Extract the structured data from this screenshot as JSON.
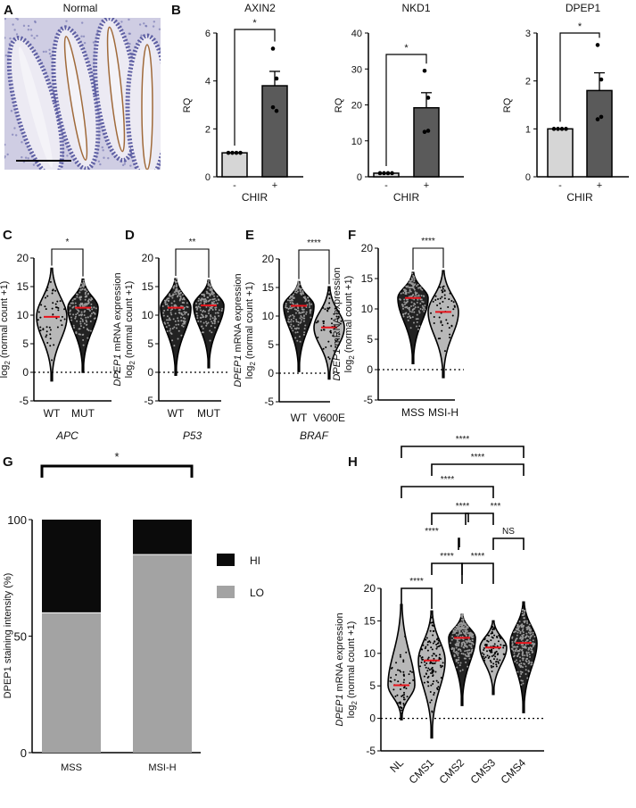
{
  "panels": {
    "A": "A",
    "B": "B",
    "C": "C",
    "D": "D",
    "E": "E",
    "F": "F",
    "G": "G",
    "H": "H"
  },
  "image_panel": {
    "title": "Normal"
  },
  "colors": {
    "bar_ctrl": "#d6d6d6",
    "bar_treat": "#5a5a5a",
    "violin": "#b8b8b8",
    "median": "#e8141c",
    "hi": "#0b0b0b",
    "lo": "#a3a3a3"
  },
  "violin_ylabel": {
    "gene": "DPEP1",
    "rest": " mRNA expression",
    "log": "log",
    "sub": "2",
    "unit": " (normal count +1)"
  },
  "chart_data": [
    {
      "panel": "B",
      "type": "bar",
      "title": "AXIN2",
      "categories": [
        "-",
        "+"
      ],
      "values": [
        1,
        3.8
      ],
      "sem": [
        0,
        0.6
      ],
      "points": [
        [
          1,
          1,
          1,
          1
        ],
        [
          5.35,
          4.1,
          2.9,
          2.75
        ]
      ],
      "xlabel": "CHIR",
      "ylabel": "RQ",
      "ylim": [
        0,
        6
      ],
      "yticks": [
        "0",
        "2",
        "4",
        "6"
      ],
      "significance": "*"
    },
    {
      "panel": "B",
      "type": "bar",
      "title": "NKD1",
      "categories": [
        "-",
        "+"
      ],
      "values": [
        1,
        19.2
      ],
      "sem": [
        0,
        4.2
      ],
      "points": [
        [
          1,
          1,
          1,
          1
        ],
        [
          29.5,
          22,
          12.5,
          12.8
        ]
      ],
      "xlabel": "CHIR",
      "ylabel": "RQ",
      "ylim": [
        0,
        40
      ],
      "yticks": [
        "0",
        "10",
        "20",
        "30",
        "40"
      ],
      "significance": "*"
    },
    {
      "panel": "B",
      "type": "bar",
      "title": "DPEP1",
      "categories": [
        "-",
        "+"
      ],
      "values": [
        1,
        1.8
      ],
      "sem": [
        0,
        0.37
      ],
      "points": [
        [
          1,
          1,
          1,
          1
        ],
        [
          2.75,
          2.03,
          1.2,
          1.25
        ]
      ],
      "xlabel": "CHIR",
      "ylabel": "RQ",
      "ylim": [
        0,
        3
      ],
      "yticks": [
        "0",
        "1",
        "2",
        "3"
      ],
      "significance": "*"
    },
    {
      "panel": "C",
      "type": "violin",
      "categories": [
        "WT",
        "MUT"
      ],
      "medians": [
        9.7,
        11.3
      ],
      "ranges": [
        [
          -1.5,
          18.2
        ],
        [
          0,
          16.3
        ]
      ],
      "xlabel": "APC",
      "ylim": [
        -5,
        20
      ],
      "yticks": [
        "-5",
        "0",
        "5",
        "10",
        "15",
        "20"
      ],
      "comparisons": [
        {
          "pair": [
            0,
            1
          ],
          "label": "*"
        }
      ]
    },
    {
      "panel": "D",
      "type": "violin",
      "categories": [
        "WT",
        "MUT"
      ],
      "medians": [
        11.3,
        11.7
      ],
      "ranges": [
        [
          -0.5,
          16.4
        ],
        [
          0.8,
          16.1
        ]
      ],
      "xlabel": "P53",
      "ylim": [
        -5,
        20
      ],
      "yticks": [
        "-5",
        "0",
        "5",
        "10",
        "15",
        "20"
      ],
      "comparisons": [
        {
          "pair": [
            0,
            1
          ],
          "label": "**"
        }
      ]
    },
    {
      "panel": "E",
      "type": "violin",
      "categories": [
        "WT",
        "V600E"
      ],
      "medians": [
        11.8,
        8.0
      ],
      "ranges": [
        [
          0.3,
          16
        ],
        [
          -1,
          15.1
        ]
      ],
      "xlabel": "BRAF",
      "ylim": [
        -5,
        20
      ],
      "yticks": [
        "-5",
        "0",
        "5",
        "10",
        "15",
        "20"
      ],
      "comparisons": [
        {
          "pair": [
            0,
            1
          ],
          "label": "****"
        }
      ]
    },
    {
      "panel": "F",
      "type": "violin",
      "categories": [
        "MSS",
        "MSI-H"
      ],
      "medians": [
        11.8,
        9.5
      ],
      "ranges": [
        [
          1,
          16
        ],
        [
          -1.3,
          16.3
        ]
      ],
      "xlabel": "",
      "ylim": [
        -5,
        20
      ],
      "yticks": [
        "-5",
        "0",
        "5",
        "10",
        "15",
        "20"
      ],
      "comparisons": [
        {
          "pair": [
            0,
            1
          ],
          "label": "****"
        }
      ]
    },
    {
      "panel": "G",
      "type": "bar",
      "stacked": true,
      "categories": [
        "MSS",
        "MSI-H"
      ],
      "series": [
        {
          "name": "LO",
          "values": [
            60,
            85
          ]
        },
        {
          "name": "HI",
          "values": [
            40,
            15
          ]
        }
      ],
      "ylabel": "DPEP1 staining intensity (%)",
      "ylim": [
        0,
        100
      ],
      "yticks": [
        "0",
        "50",
        "100"
      ],
      "legend": "right",
      "significance": "*"
    },
    {
      "panel": "H",
      "type": "violin",
      "categories": [
        "NL",
        "CMS1",
        "CMS2",
        "CMS3",
        "CMS4"
      ],
      "medians": [
        5.1,
        8.9,
        12.4,
        10.9,
        11.6
      ],
      "ranges": [
        [
          -0.2,
          17.5
        ],
        [
          -3,
          16.5
        ],
        [
          2,
          16
        ],
        [
          3.7,
          15
        ],
        [
          0.9,
          17.9
        ]
      ],
      "ylim": [
        -5,
        20
      ],
      "yticks": [
        "-5",
        "0",
        "5",
        "10",
        "15",
        "20"
      ],
      "comparisons": [
        {
          "pair": [
            0,
            1
          ],
          "label": "****"
        },
        {
          "pair": [
            2,
            3
          ],
          "label": "****"
        },
        {
          "pair": [
            1,
            2
          ],
          "label": "****"
        },
        {
          "pair": [
            3,
            4
          ],
          "label": "NS"
        },
        {
          "pair": [
            0,
            2
          ],
          "label": "****"
        },
        {
          "pair": [
            2,
            4
          ],
          "label": "***"
        },
        {
          "pair": [
            1,
            3
          ],
          "label": "****"
        },
        {
          "pair": [
            0,
            3
          ],
          "label": "****"
        },
        {
          "pair": [
            1,
            4
          ],
          "label": "****"
        },
        {
          "pair": [
            0,
            4
          ],
          "label": "****"
        }
      ]
    }
  ]
}
